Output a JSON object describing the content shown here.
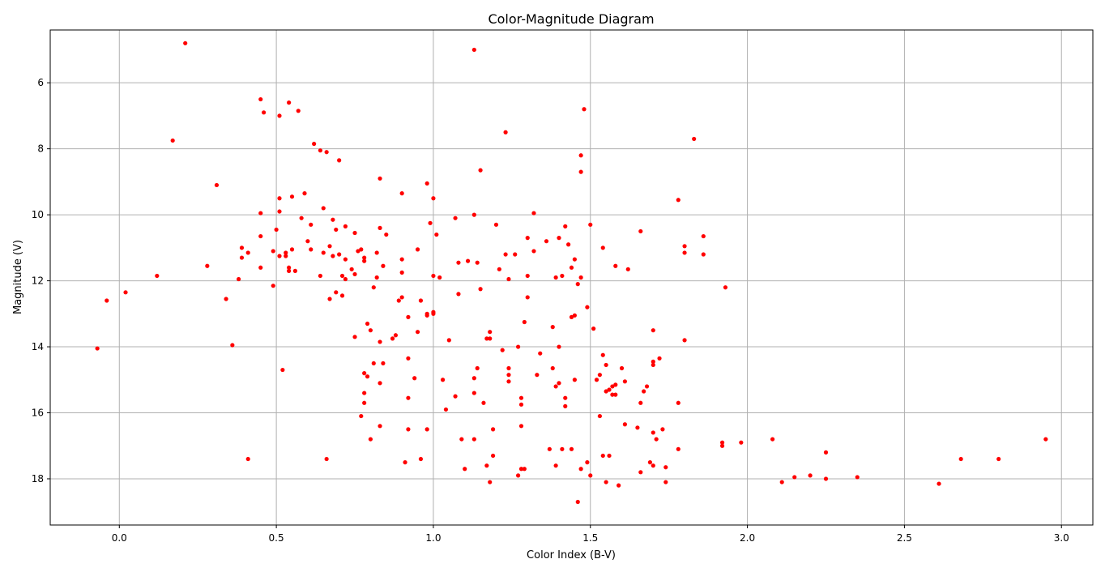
{
  "chart_data": {
    "type": "scatter",
    "title": "Color-Magnitude Diagram",
    "xlabel": "Color Index (B-V)",
    "ylabel": "Magnitude (V)",
    "xlim": [
      -0.22,
      3.1
    ],
    "ylim": [
      4.4,
      19.4
    ],
    "y_inverted": true,
    "grid": true,
    "marker_color": "#ff0000",
    "xticks": [
      0.0,
      0.5,
      1.0,
      1.5,
      2.0,
      2.5,
      3.0
    ],
    "xtick_labels": [
      "0.0",
      "0.5",
      "1.0",
      "1.5",
      "2.0",
      "2.5",
      "3.0"
    ],
    "yticks": [
      6,
      8,
      10,
      12,
      14,
      16,
      18
    ],
    "ytick_labels": [
      "6",
      "8",
      "10",
      "12",
      "14",
      "16",
      "18"
    ],
    "points": [
      [
        0.21,
        4.8
      ],
      [
        1.13,
        5.0
      ],
      [
        0.17,
        7.75
      ],
      [
        0.31,
        9.1
      ],
      [
        0.12,
        11.85
      ],
      [
        -0.04,
        12.6
      ],
      [
        0.02,
        12.35
      ],
      [
        -0.07,
        14.05
      ],
      [
        0.28,
        11.55
      ],
      [
        0.34,
        12.55
      ],
      [
        0.36,
        13.95
      ],
      [
        0.38,
        11.95
      ],
      [
        0.39,
        11.0
      ],
      [
        0.39,
        11.3
      ],
      [
        0.41,
        11.15
      ],
      [
        0.41,
        17.4
      ],
      [
        0.45,
        6.5
      ],
      [
        0.46,
        6.9
      ],
      [
        0.45,
        9.95
      ],
      [
        0.45,
        10.65
      ],
      [
        0.45,
        11.6
      ],
      [
        0.49,
        11.1
      ],
      [
        0.49,
        12.15
      ],
      [
        0.5,
        10.45
      ],
      [
        0.51,
        7.0
      ],
      [
        0.51,
        9.5
      ],
      [
        0.51,
        9.9
      ],
      [
        0.51,
        11.25
      ],
      [
        0.52,
        14.7
      ],
      [
        0.53,
        11.15
      ],
      [
        0.53,
        11.25
      ],
      [
        0.54,
        6.6
      ],
      [
        0.54,
        11.6
      ],
      [
        0.54,
        11.7
      ],
      [
        0.55,
        9.45
      ],
      [
        0.55,
        11.05
      ],
      [
        0.56,
        11.7
      ],
      [
        0.57,
        6.85
      ],
      [
        0.58,
        10.1
      ],
      [
        0.59,
        9.35
      ],
      [
        0.6,
        10.8
      ],
      [
        0.61,
        10.3
      ],
      [
        0.61,
        11.05
      ],
      [
        0.62,
        7.85
      ],
      [
        0.64,
        8.05
      ],
      [
        0.64,
        11.85
      ],
      [
        0.65,
        9.8
      ],
      [
        0.65,
        11.15
      ],
      [
        0.66,
        8.1
      ],
      [
        0.66,
        17.4
      ],
      [
        0.67,
        10.95
      ],
      [
        0.67,
        12.55
      ],
      [
        0.68,
        10.15
      ],
      [
        0.68,
        11.25
      ],
      [
        0.69,
        10.45
      ],
      [
        0.69,
        12.35
      ],
      [
        0.7,
        8.35
      ],
      [
        0.7,
        11.2
      ],
      [
        0.71,
        11.85
      ],
      [
        0.71,
        12.45
      ],
      [
        0.72,
        10.35
      ],
      [
        0.72,
        11.35
      ],
      [
        0.72,
        11.95
      ],
      [
        0.74,
        11.65
      ],
      [
        0.75,
        10.55
      ],
      [
        0.75,
        11.8
      ],
      [
        0.75,
        13.7
      ],
      [
        0.76,
        11.1
      ],
      [
        0.77,
        11.05
      ],
      [
        0.77,
        16.1
      ],
      [
        0.78,
        11.3
      ],
      [
        0.78,
        11.4
      ],
      [
        0.78,
        14.8
      ],
      [
        0.78,
        15.4
      ],
      [
        0.78,
        15.7
      ],
      [
        0.79,
        13.3
      ],
      [
        0.79,
        14.9
      ],
      [
        0.8,
        13.5
      ],
      [
        0.8,
        16.8
      ],
      [
        0.81,
        12.2
      ],
      [
        0.81,
        14.5
      ],
      [
        0.82,
        11.15
      ],
      [
        0.82,
        11.9
      ],
      [
        0.83,
        8.9
      ],
      [
        0.83,
        10.4
      ],
      [
        0.83,
        13.85
      ],
      [
        0.83,
        15.1
      ],
      [
        0.83,
        16.4
      ],
      [
        0.84,
        11.55
      ],
      [
        0.84,
        14.5
      ],
      [
        0.85,
        10.6
      ],
      [
        0.87,
        13.75
      ],
      [
        0.88,
        13.65
      ],
      [
        0.89,
        12.6
      ],
      [
        0.9,
        9.35
      ],
      [
        0.9,
        11.35
      ],
      [
        0.9,
        11.75
      ],
      [
        0.9,
        12.5
      ],
      [
        0.91,
        17.5
      ],
      [
        0.92,
        13.1
      ],
      [
        0.92,
        14.35
      ],
      [
        0.92,
        15.55
      ],
      [
        0.92,
        16.5
      ],
      [
        0.94,
        14.95
      ],
      [
        0.95,
        11.05
      ],
      [
        0.95,
        13.55
      ],
      [
        0.96,
        12.6
      ],
      [
        0.96,
        17.4
      ],
      [
        0.98,
        9.05
      ],
      [
        0.98,
        13.0
      ],
      [
        0.98,
        13.05
      ],
      [
        0.98,
        16.5
      ],
      [
        0.99,
        10.25
      ],
      [
        1.0,
        9.5
      ],
      [
        1.0,
        11.85
      ],
      [
        1.0,
        12.95
      ],
      [
        1.0,
        13.0
      ],
      [
        1.01,
        10.6
      ],
      [
        1.02,
        11.9
      ],
      [
        1.03,
        15.0
      ],
      [
        1.04,
        15.9
      ],
      [
        1.05,
        13.8
      ],
      [
        1.07,
        10.1
      ],
      [
        1.07,
        15.5
      ],
      [
        1.08,
        11.45
      ],
      [
        1.08,
        12.4
      ],
      [
        1.09,
        16.8
      ],
      [
        1.1,
        17.7
      ],
      [
        1.11,
        11.4
      ],
      [
        1.13,
        10.0
      ],
      [
        1.13,
        14.95
      ],
      [
        1.13,
        15.4
      ],
      [
        1.13,
        16.8
      ],
      [
        1.14,
        11.45
      ],
      [
        1.14,
        14.65
      ],
      [
        1.15,
        8.65
      ],
      [
        1.15,
        12.25
      ],
      [
        1.16,
        15.7
      ],
      [
        1.17,
        13.75
      ],
      [
        1.17,
        17.6
      ],
      [
        1.18,
        13.75
      ],
      [
        1.18,
        18.1
      ],
      [
        1.18,
        13.55
      ],
      [
        1.19,
        16.5
      ],
      [
        1.19,
        17.3
      ],
      [
        1.2,
        10.3
      ],
      [
        1.21,
        11.65
      ],
      [
        1.22,
        14.1
      ],
      [
        1.23,
        7.5
      ],
      [
        1.23,
        11.2
      ],
      [
        1.24,
        11.95
      ],
      [
        1.24,
        14.65
      ],
      [
        1.24,
        14.85
      ],
      [
        1.24,
        15.05
      ],
      [
        1.26,
        11.2
      ],
      [
        1.27,
        14.0
      ],
      [
        1.27,
        17.9
      ],
      [
        1.28,
        15.55
      ],
      [
        1.28,
        15.75
      ],
      [
        1.28,
        16.4
      ],
      [
        1.28,
        17.7
      ],
      [
        1.29,
        13.25
      ],
      [
        1.29,
        17.7
      ],
      [
        1.3,
        10.7
      ],
      [
        1.3,
        11.85
      ],
      [
        1.3,
        12.5
      ],
      [
        1.32,
        9.95
      ],
      [
        1.32,
        11.1
      ],
      [
        1.33,
        14.85
      ],
      [
        1.34,
        14.2
      ],
      [
        1.36,
        10.8
      ],
      [
        1.37,
        17.1
      ],
      [
        1.38,
        13.4
      ],
      [
        1.38,
        14.65
      ],
      [
        1.39,
        11.9
      ],
      [
        1.39,
        15.2
      ],
      [
        1.39,
        17.6
      ],
      [
        1.4,
        10.7
      ],
      [
        1.4,
        14.0
      ],
      [
        1.4,
        15.1
      ],
      [
        1.41,
        11.85
      ],
      [
        1.41,
        17.1
      ],
      [
        1.42,
        10.35
      ],
      [
        1.42,
        15.55
      ],
      [
        1.42,
        15.8
      ],
      [
        1.43,
        10.9
      ],
      [
        1.44,
        11.6
      ],
      [
        1.44,
        13.1
      ],
      [
        1.44,
        17.1
      ],
      [
        1.45,
        11.35
      ],
      [
        1.45,
        15.0
      ],
      [
        1.45,
        13.05
      ],
      [
        1.46,
        12.1
      ],
      [
        1.46,
        18.7
      ],
      [
        1.47,
        8.2
      ],
      [
        1.47,
        8.7
      ],
      [
        1.47,
        11.9
      ],
      [
        1.47,
        17.7
      ],
      [
        1.48,
        6.8
      ],
      [
        1.49,
        12.8
      ],
      [
        1.49,
        17.5
      ],
      [
        1.5,
        10.3
      ],
      [
        1.5,
        17.9
      ],
      [
        1.51,
        13.45
      ],
      [
        1.52,
        15.0
      ],
      [
        1.53,
        16.1
      ],
      [
        1.53,
        14.85
      ],
      [
        1.54,
        11.0
      ],
      [
        1.54,
        14.25
      ],
      [
        1.54,
        17.3
      ],
      [
        1.55,
        14.55
      ],
      [
        1.55,
        15.35
      ],
      [
        1.55,
        18.1
      ],
      [
        1.56,
        15.3
      ],
      [
        1.56,
        17.3
      ],
      [
        1.57,
        15.2
      ],
      [
        1.57,
        15.45
      ],
      [
        1.58,
        11.55
      ],
      [
        1.58,
        15.15
      ],
      [
        1.58,
        15.45
      ],
      [
        1.59,
        18.2
      ],
      [
        1.6,
        14.65
      ],
      [
        1.61,
        15.05
      ],
      [
        1.61,
        16.35
      ],
      [
        1.62,
        11.65
      ],
      [
        1.65,
        16.45
      ],
      [
        1.66,
        10.5
      ],
      [
        1.66,
        15.7
      ],
      [
        1.66,
        17.8
      ],
      [
        1.67,
        15.35
      ],
      [
        1.68,
        15.2
      ],
      [
        1.69,
        17.5
      ],
      [
        1.7,
        13.5
      ],
      [
        1.7,
        14.45
      ],
      [
        1.7,
        14.55
      ],
      [
        1.7,
        16.6
      ],
      [
        1.7,
        17.6
      ],
      [
        1.71,
        16.8
      ],
      [
        1.72,
        14.35
      ],
      [
        1.73,
        16.5
      ],
      [
        1.74,
        17.65
      ],
      [
        1.74,
        18.1
      ],
      [
        1.78,
        9.55
      ],
      [
        1.78,
        15.7
      ],
      [
        1.78,
        17.1
      ],
      [
        1.8,
        10.95
      ],
      [
        1.8,
        11.15
      ],
      [
        1.8,
        13.8
      ],
      [
        1.83,
        7.7
      ],
      [
        1.86,
        10.65
      ],
      [
        1.86,
        11.2
      ],
      [
        1.92,
        16.9
      ],
      [
        1.92,
        17.0
      ],
      [
        1.93,
        12.2
      ],
      [
        1.98,
        16.9
      ],
      [
        2.08,
        16.8
      ],
      [
        2.11,
        18.1
      ],
      [
        2.15,
        17.95
      ],
      [
        2.2,
        17.9
      ],
      [
        2.25,
        17.2
      ],
      [
        2.25,
        18.0
      ],
      [
        2.35,
        17.95
      ],
      [
        2.61,
        18.15
      ],
      [
        2.68,
        17.4
      ],
      [
        2.8,
        17.4
      ],
      [
        2.95,
        16.8
      ]
    ]
  }
}
